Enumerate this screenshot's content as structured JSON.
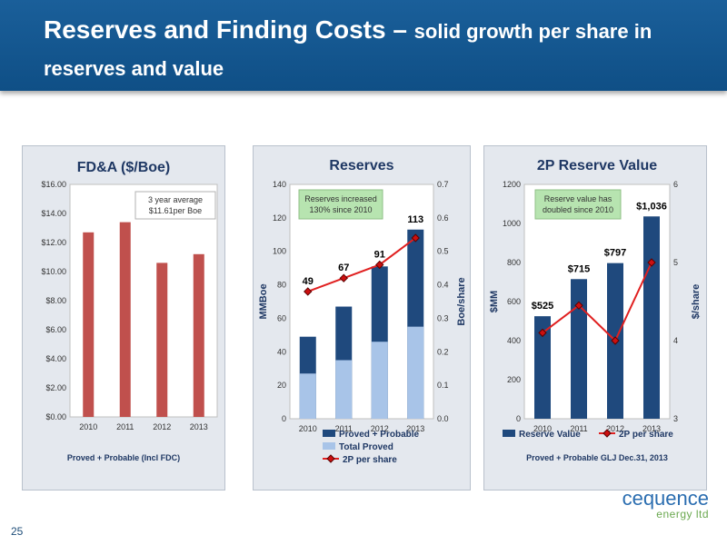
{
  "header": {
    "title_main": "Reserves and Finding Costs – ",
    "title_sub": "solid growth per share in reserves and value"
  },
  "page_number": "25",
  "logo": {
    "line1": "cequence",
    "line2": "energy ltd"
  },
  "colors": {
    "red_bar": "#c0504d",
    "navy_bar": "#1f497d",
    "light_blue_bar": "#a8c4e8",
    "line_red": "#e02020",
    "callout_fill": "#b7e4b0",
    "accent": "#1f4e79"
  },
  "chart_data": [
    {
      "type": "bar",
      "title": "FD&A ($/Boe)",
      "categories": [
        "2010",
        "2011",
        "2012",
        "2013"
      ],
      "values": [
        12.7,
        13.4,
        10.6,
        11.2
      ],
      "ylim": [
        0,
        16
      ],
      "y_ticks": [
        "$0.00",
        "$2.00",
        "$4.00",
        "$6.00",
        "$8.00",
        "$10.00",
        "$12.00",
        "$14.00",
        "$16.00"
      ],
      "footnote": "Proved + Probable (Incl FDC)",
      "callout": "3 year average $11.61per Boe",
      "grid": false
    },
    {
      "type": "bar",
      "title": "Reserves",
      "categories": [
        "2010",
        "2011",
        "2012",
        "2013"
      ],
      "series": [
        {
          "name": "Proved + Probable",
          "values": [
            49,
            67,
            91,
            113
          ]
        },
        {
          "name": "Total Proved",
          "values": [
            27,
            35,
            46,
            55
          ]
        },
        {
          "name": "2P per share",
          "type": "line",
          "axis": "right",
          "values": [
            0.38,
            0.42,
            0.46,
            0.54
          ]
        }
      ],
      "data_labels": [
        "49",
        "67",
        "91",
        "113"
      ],
      "ylabel": "MMBoe",
      "ylabel_right": "Boe/share",
      "ylim": [
        0,
        140
      ],
      "ylim_right": [
        0,
        0.7
      ],
      "y_ticks": [
        "0",
        "20",
        "40",
        "60",
        "80",
        "100",
        "120",
        "140"
      ],
      "y_ticks_right": [
        "0.0",
        "0.1",
        "0.2",
        "0.3",
        "0.4",
        "0.5",
        "0.6",
        "0.7"
      ],
      "callout": "Reserves increased 130% since 2010",
      "legend": "bottom"
    },
    {
      "type": "bar",
      "title": "2P Reserve Value",
      "categories": [
        "2010",
        "2011",
        "2012",
        "2013"
      ],
      "series": [
        {
          "name": "Reserve Value",
          "values": [
            525,
            715,
            797,
            1036
          ]
        },
        {
          "name": "2P per share",
          "type": "line",
          "axis": "right",
          "values": [
            4.1,
            4.45,
            4.0,
            5.0
          ]
        }
      ],
      "data_labels": [
        "$525",
        "$715",
        "$797",
        "$1,036"
      ],
      "ylabel": "$MM",
      "ylabel_right": "$/share",
      "ylim": [
        0,
        1200
      ],
      "ylim_right": [
        3,
        6
      ],
      "y_ticks": [
        "0",
        "200",
        "400",
        "600",
        "800",
        "1000",
        "1200"
      ],
      "y_ticks_right": [
        "3",
        "4",
        "5",
        "6"
      ],
      "callout": "Reserve value has doubled since 2010",
      "footnote": "Proved + Probable GLJ Dec.31, 2013",
      "legend": "bottom"
    }
  ]
}
